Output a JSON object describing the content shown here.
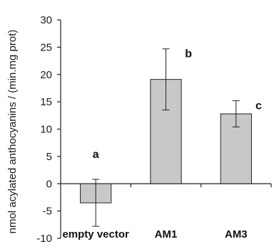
{
  "chart_data": {
    "type": "bar",
    "categories": [
      "empty vector",
      "AM1",
      "AM3"
    ],
    "values": [
      -3.5,
      19.1,
      12.8
    ],
    "error": [
      4.3,
      5.6,
      2.4
    ],
    "significance": [
      "a",
      "b",
      "c"
    ],
    "title": "",
    "xlabel": "",
    "ylabel": "nmol acylated anthocyanins / (min.mg prot)",
    "ylim": [
      -10,
      30
    ],
    "yticks": [
      -10,
      -5,
      0,
      5,
      10,
      15,
      20,
      25,
      30
    ],
    "grid": false,
    "legend": "none",
    "colors": {
      "bar_fill": "#c8c8c8",
      "bar_stroke": "#222222",
      "axis": "#222222"
    }
  }
}
